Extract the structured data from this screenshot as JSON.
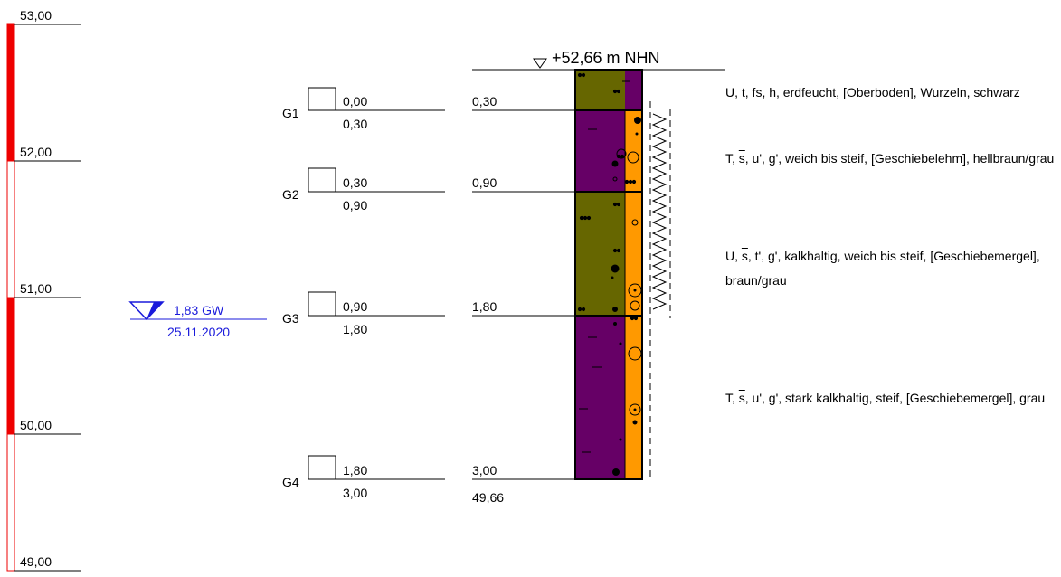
{
  "scale": {
    "labels": [
      "53,00",
      "52,00",
      "51,00",
      "50,00",
      "49,00"
    ],
    "values": [
      53,
      52,
      51,
      50,
      49
    ]
  },
  "groundwater": {
    "depth_label": "1,83 GW",
    "date": "25.11.2020",
    "depth": 1.83
  },
  "surface": {
    "label": "+52,66 m NHN",
    "elevation": 52.66
  },
  "samples": [
    {
      "id": "G1",
      "top": "0,00",
      "bottom": "0,30"
    },
    {
      "id": "G2",
      "top": "0,30",
      "bottom": "0,90"
    },
    {
      "id": "G3",
      "top": "0,90",
      "bottom": "1,80"
    },
    {
      "id": "G4",
      "top": "1,80",
      "bottom": "3,00"
    }
  ],
  "layers": [
    {
      "bottom_depth": "0,30",
      "depth": 0.3,
      "main_color": "#666600",
      "side_color": "#660066",
      "desc": "U, t, fs, h, erdfeucht, [Oberboden], Wurzeln, schwarz"
    },
    {
      "bottom_depth": "0,90",
      "depth": 0.9,
      "main_color": "#660066",
      "side_color": "#ff9900",
      "desc_prefix": "T, ",
      "desc_overline": "s",
      "desc_rest": ", u', g', weich bis steif, [Geschiebelehm], hellbraun/grau"
    },
    {
      "bottom_depth": "1,80",
      "depth": 1.8,
      "main_color": "#666600",
      "side_color": "#ff9900",
      "desc_prefix": "U, ",
      "desc_overline": "s",
      "desc_rest": ", t', g', kalkhaltig, weich bis steif, [Geschiebemergel], braun/grau"
    },
    {
      "bottom_depth": "3,00",
      "depth": 3.0,
      "main_color": "#660066",
      "side_color": "#ff9900",
      "desc_prefix": "T, ",
      "desc_overline": "s",
      "desc_rest": ", u', g', stark kalkhaltig, steif, [Geschiebemergel], grau"
    }
  ],
  "base_elevation": "49,66"
}
